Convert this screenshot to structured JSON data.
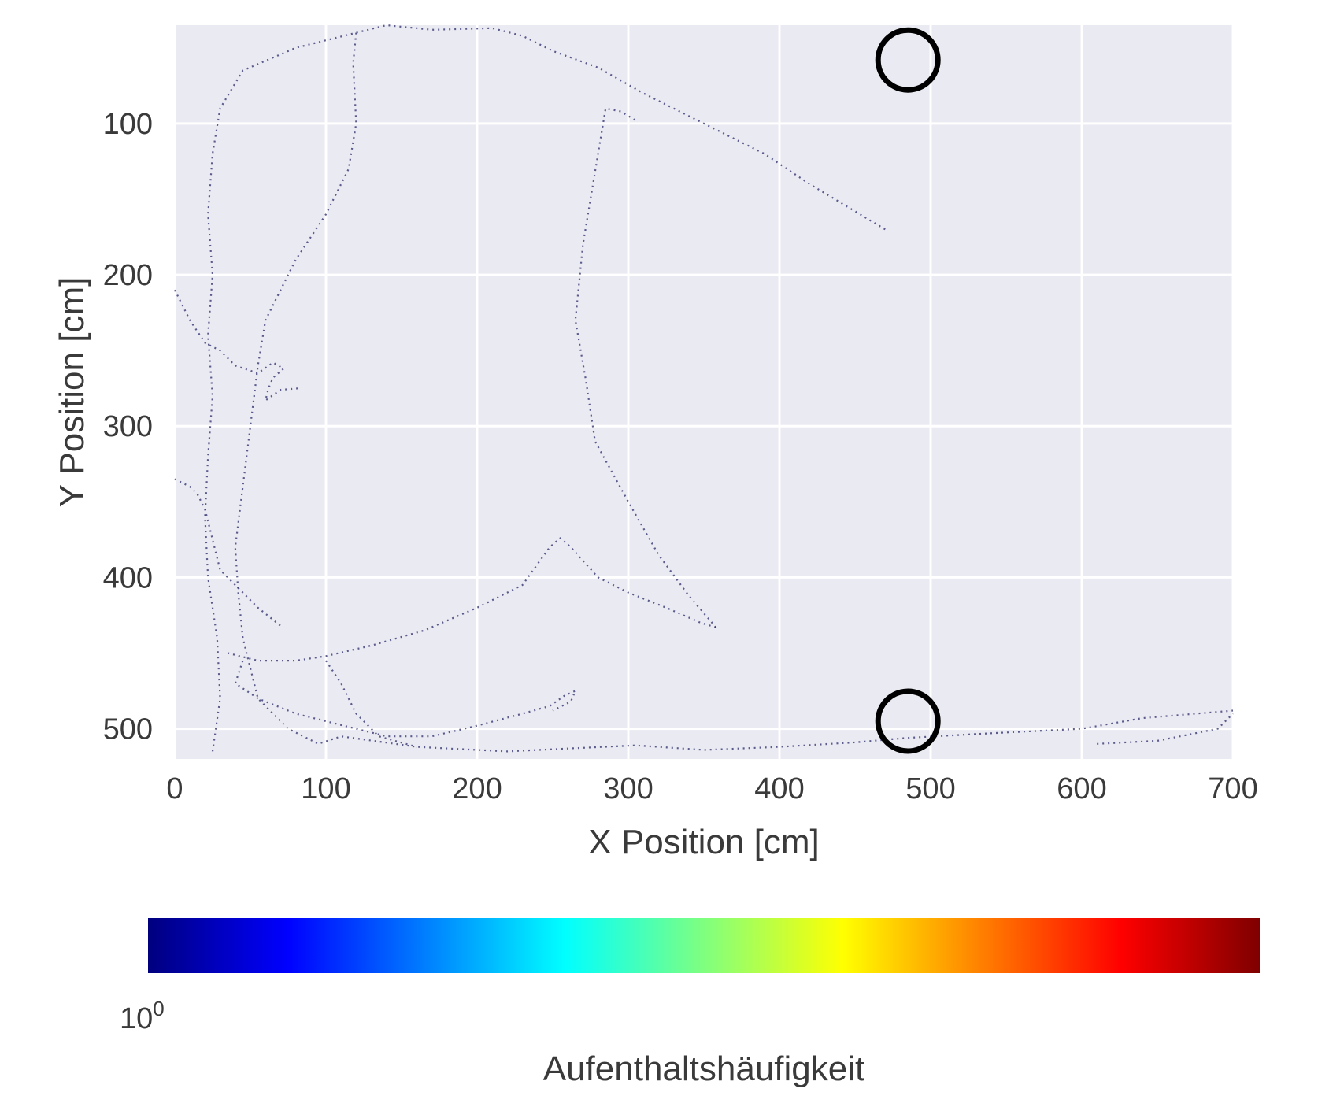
{
  "chart_data": {
    "type": "heatmap",
    "title": "",
    "xlabel": "X Position [cm]",
    "ylabel": "Y Position [cm]",
    "xlim": [
      0,
      700
    ],
    "ylim": [
      520,
      35
    ],
    "x_ticks": [
      "0",
      "100",
      "200",
      "300",
      "400",
      "500",
      "600",
      "700"
    ],
    "y_ticks": [
      "100",
      "200",
      "300",
      "400",
      "500"
    ],
    "grid": true,
    "background_color": "#eaeaf2",
    "grid_color": "#ffffff",
    "colormap": "jet",
    "colorbar": {
      "label": "Aufenthaltshäufigkeit",
      "orientation": "horizontal",
      "tick_base": "10",
      "tick_exponent": "0",
      "colors": [
        "#00007f",
        "#0000ff",
        "#007fff",
        "#00ffff",
        "#7fff7f",
        "#ffff00",
        "#ff7f00",
        "#ff0000",
        "#7f0000"
      ]
    },
    "markers": {
      "type": "circle",
      "stroke": "#000000",
      "points": [
        {
          "x": 485,
          "y": 58
        },
        {
          "x": 485,
          "y": 495
        }
      ]
    },
    "trajectories": [
      {
        "points": [
          [
            25,
            515
          ],
          [
            30,
            480
          ],
          [
            28,
            440
          ],
          [
            22,
            400
          ],
          [
            20,
            360
          ],
          [
            22,
            320
          ],
          [
            25,
            280
          ],
          [
            22,
            240
          ],
          [
            25,
            200
          ],
          [
            22,
            160
          ],
          [
            25,
            120
          ],
          [
            30,
            90
          ],
          [
            45,
            65
          ],
          [
            80,
            50
          ],
          [
            120,
            40
          ],
          [
            140,
            35
          ],
          [
            170,
            38
          ],
          [
            210,
            37
          ],
          [
            230,
            42
          ],
          [
            250,
            52
          ],
          [
            280,
            63
          ],
          [
            310,
            80
          ],
          [
            350,
            100
          ],
          [
            390,
            120
          ],
          [
            420,
            140
          ],
          [
            450,
            158
          ],
          [
            470,
            170
          ]
        ]
      },
      {
        "points": [
          [
            120,
            40
          ],
          [
            118,
            60
          ],
          [
            120,
            100
          ],
          [
            115,
            130
          ],
          [
            100,
            160
          ],
          [
            80,
            190
          ],
          [
            60,
            230
          ],
          [
            55,
            260
          ],
          [
            50,
            300
          ],
          [
            45,
            340
          ],
          [
            40,
            380
          ],
          [
            42,
            410
          ],
          [
            45,
            440
          ],
          [
            55,
            480
          ],
          [
            75,
            500
          ],
          [
            95,
            510
          ],
          [
            110,
            505
          ],
          [
            160,
            512
          ],
          [
            220,
            515
          ],
          [
            262,
            513
          ],
          [
            305,
            511
          ],
          [
            350,
            514
          ],
          [
            400,
            512
          ],
          [
            450,
            509
          ],
          [
            485,
            506
          ],
          [
            540,
            503
          ],
          [
            600,
            500
          ],
          [
            640,
            493
          ],
          [
            700,
            488
          ]
        ]
      },
      {
        "points": [
          [
            0,
            210
          ],
          [
            10,
            230
          ],
          [
            20,
            245
          ],
          [
            30,
            250
          ],
          [
            40,
            260
          ],
          [
            55,
            265
          ],
          [
            65,
            258
          ],
          [
            72,
            262
          ],
          [
            65,
            268
          ],
          [
            62,
            275
          ],
          [
            60,
            283
          ],
          [
            70,
            276
          ],
          [
            82,
            275
          ]
        ]
      },
      {
        "points": [
          [
            0,
            335
          ],
          [
            10,
            340
          ],
          [
            15,
            345
          ],
          [
            20,
            355
          ],
          [
            25,
            375
          ],
          [
            30,
            395
          ],
          [
            40,
            405
          ],
          [
            55,
            420
          ],
          [
            70,
            432
          ]
        ]
      },
      {
        "points": [
          [
            35,
            450
          ],
          [
            55,
            455
          ],
          [
            80,
            455
          ],
          [
            100,
            452
          ],
          [
            130,
            445
          ],
          [
            165,
            435
          ],
          [
            200,
            420
          ],
          [
            230,
            405
          ],
          [
            248,
            380
          ],
          [
            255,
            374
          ],
          [
            262,
            380
          ],
          [
            280,
            400
          ],
          [
            300,
            410
          ],
          [
            325,
            420
          ],
          [
            348,
            430
          ],
          [
            358,
            433
          ]
        ]
      },
      {
        "points": [
          [
            358,
            433
          ],
          [
            340,
            412
          ],
          [
            320,
            385
          ],
          [
            300,
            350
          ],
          [
            278,
            310
          ],
          [
            272,
            270
          ],
          [
            265,
            230
          ],
          [
            270,
            180
          ],
          [
            280,
            120
          ],
          [
            285,
            90
          ],
          [
            295,
            92
          ],
          [
            305,
            98
          ]
        ]
      },
      {
        "points": [
          [
            45,
            455
          ],
          [
            40,
            470
          ],
          [
            55,
            480
          ],
          [
            80,
            490
          ],
          [
            100,
            495
          ],
          [
            140,
            505
          ],
          [
            170,
            505
          ],
          [
            200,
            498
          ],
          [
            230,
            490
          ],
          [
            248,
            485
          ],
          [
            258,
            478
          ],
          [
            265,
            475
          ],
          [
            262,
            482
          ],
          [
            250,
            488
          ]
        ]
      },
      {
        "points": [
          [
            610,
            510
          ],
          [
            650,
            508
          ],
          [
            690,
            500
          ],
          [
            700,
            490
          ]
        ]
      },
      {
        "points": [
          [
            100,
            455
          ],
          [
            110,
            470
          ],
          [
            120,
            490
          ],
          [
            135,
            505
          ],
          [
            160,
            512
          ]
        ]
      }
    ]
  }
}
